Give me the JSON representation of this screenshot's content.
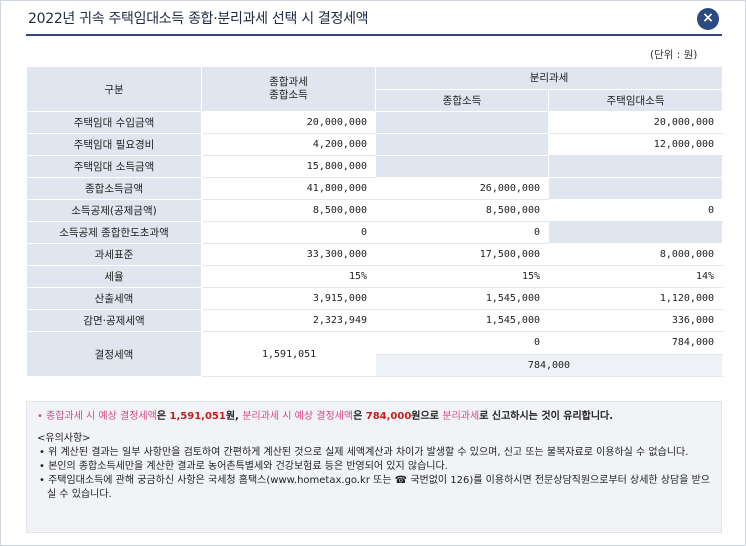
{
  "window": {
    "title": "2022년 귀속 주택임대소득 종합·분리과세 선택 시 결정세액",
    "close_label": "×"
  },
  "unit_label": "(단위 : 원)",
  "table": {
    "col_header": "구분",
    "comprehensive_header": "종합과세\n종합소득",
    "separate_header": "분리과세",
    "separate_sub1": "종합소득",
    "separate_sub2": "주택임대소득",
    "rows": [
      {
        "label": "주택임대 수입금액",
        "comp": "20,000,000",
        "sep1": "",
        "sep2": "20,000,000"
      },
      {
        "label": "주택임대 필요경비",
        "comp": "4,200,000",
        "sep1": "",
        "sep2": "12,000,000"
      },
      {
        "label": "주택임대 소득금액",
        "comp": "15,800,000",
        "sep1": "",
        "sep2": ""
      },
      {
        "label": "종합소득금액",
        "comp": "41,800,000",
        "sep1": "26,000,000",
        "sep2": ""
      },
      {
        "label": "소득공제(공제금액)",
        "comp": "8,500,000",
        "sep1": "8,500,000",
        "sep2": "0"
      },
      {
        "label": "소득공제 종합한도초과액",
        "comp": "0",
        "sep1": "0",
        "sep2": ""
      },
      {
        "label": "과세표준",
        "comp": "33,300,000",
        "sep1": "17,500,000",
        "sep2": "8,000,000"
      },
      {
        "label": "세율",
        "comp": "15%",
        "sep1": "15%",
        "sep2": "14%"
      },
      {
        "label": "산출세액",
        "comp": "3,915,000",
        "sep1": "1,545,000",
        "sep2": "1,120,000"
      },
      {
        "label": "감면·공제세액",
        "comp": "2,323,949",
        "sep1": "1,545,000",
        "sep2": "336,000"
      }
    ],
    "final": {
      "label": "결정세액",
      "comp": "1,591,051",
      "sep1": "0",
      "sep2": "784,000",
      "sep_total": "784,000"
    }
  },
  "notes": {
    "summary_pre": "종합과세 시 예상 결정세액",
    "summary_mid1": "은 ",
    "summary_amt1": "1,591,051",
    "summary_mid2": "원, ",
    "summary_sep": "분리과세 시 예상 결정세액",
    "summary_mid3": "은 ",
    "summary_amt2": "784,000",
    "summary_mid4": "원으로 ",
    "summary_choice": "분리과세",
    "summary_end": "로 신고하시는 것이 유리합니다.",
    "caution_title": "<유의사항>",
    "items": [
      "위 계산된 결과는 일부 사항만을 검토하여 간편하게 계산된 것으로 실제 세액계산과 차이가 발생할 수 있으며, 신고 또는 불복자료로 이용하실 수 없습니다.",
      "본인의 종합소득세만을 계산한 결과로 농어촌특별세와 건강보험료 등은 반영되어 있지 않습니다.",
      "주택임대소득에 관해 궁금하신 사항은 국세청 홈택스(www.hometax.go.kr 또는 ☎ 국번없이 126)를 이용하시면 전문상담직원으로부터 상세한 상담을 받으실 수 있습니다."
    ]
  }
}
